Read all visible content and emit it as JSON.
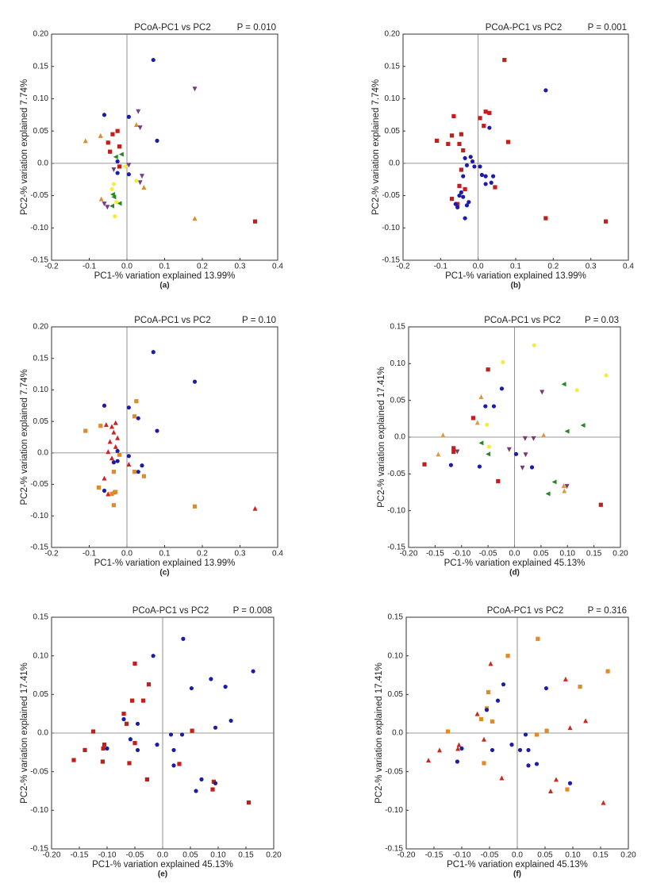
{
  "chart_data": [
    {
      "type": "scatter",
      "title": "PCoA-PC1 vs PC2",
      "annotation": "P = 0.010",
      "xlabel": "PC1-% variation explained 13.99%",
      "ylabel": "PC2-% variation explained 7.74%",
      "panel_label": "(a)",
      "xlim": [
        -0.2,
        0.4
      ],
      "ylim": [
        -0.15,
        0.2
      ],
      "zero_lines": true,
      "xticks": [
        -0.2,
        -0.1,
        {
          "value": 0,
          "label": "0.0"
        },
        0.1,
        0.2,
        0.3,
        0.4
      ],
      "yticks": [
        {
          "value": 0.2,
          "label": "0.20"
        },
        0.15,
        {
          "value": 0.1,
          "label": "0.10"
        },
        0.05,
        {
          "value": 0,
          "label": "0.0"
        },
        -0.05,
        {
          "value": -0.1,
          "label": "-0.10"
        },
        -0.15
      ],
      "series": [
        {
          "color": "#1c1ca8",
          "marker": "circle",
          "x": [
            0.07,
            -0.06,
            0.005,
            0.08,
            -0.025,
            -0.025,
            0.005
          ],
          "y": [
            0.16,
            0.075,
            0.072,
            0.035,
            0.003,
            -0.015,
            -0.017
          ]
        },
        {
          "color": "#c21f1a",
          "marker": "square",
          "x": [
            -0.025,
            -0.038,
            -0.05,
            -0.02,
            -0.045,
            -0.02,
            0.34
          ],
          "y": [
            0.05,
            0.045,
            0.032,
            0.026,
            0.018,
            -0.005,
            -0.09
          ]
        },
        {
          "color": "#e08a2a",
          "marker": "triangle-up",
          "x": [
            -0.11,
            -0.07,
            0.045,
            -0.068,
            0.18,
            0.025
          ],
          "y": [
            0.035,
            0.043,
            -0.037,
            -0.055,
            -0.085,
            0.06
          ]
        },
        {
          "color": "#238a23",
          "marker": "triangle-left",
          "x": [
            -0.015,
            -0.03,
            -0.038,
            -0.035,
            -0.02,
            -0.04
          ],
          "y": [
            0.014,
            0.01,
            -0.048,
            -0.052,
            -0.062,
            -0.066
          ]
        },
        {
          "color": "#7a3a8a",
          "marker": "triangle-down",
          "x": [
            0.18,
            0.03,
            0.035,
            -0.035,
            0.005,
            0.04,
            0.035,
            -0.06,
            -0.052
          ],
          "y": [
            0.115,
            0.08,
            0.055,
            -0.01,
            -0.003,
            -0.02,
            -0.03,
            -0.063,
            -0.068
          ]
        },
        {
          "color": "#f2ee3a",
          "marker": "circle",
          "x": [
            -0.005,
            0.025,
            -0.035,
            -0.04,
            -0.028,
            -0.032
          ],
          "y": [
            -0.005,
            -0.027,
            -0.032,
            -0.04,
            -0.06,
            -0.082
          ]
        }
      ]
    },
    {
      "type": "scatter",
      "title": "PCoA-PC1 vs PC2",
      "annotation": "P = 0.001",
      "xlabel": "PC1-% variation explained 13.99%",
      "ylabel": "PC2-% variation explained 7.74%",
      "panel_label": "(b)",
      "xlim": [
        -0.2,
        0.4
      ],
      "ylim": [
        -0.15,
        0.2
      ],
      "zero_lines": true,
      "xticks": [
        -0.2,
        -0.1,
        {
          "value": 0,
          "label": "0.0"
        },
        0.1,
        0.2,
        0.3,
        0.4
      ],
      "yticks": [
        {
          "value": 0.2,
          "label": "0.20"
        },
        0.15,
        {
          "value": 0.1,
          "label": "0.10"
        },
        0.05,
        {
          "value": 0,
          "label": "0.0"
        },
        -0.05,
        {
          "value": -0.1,
          "label": "-0.10"
        },
        -0.15
      ],
      "series": [
        {
          "color": "#c21f1a",
          "marker": "square",
          "x": [
            0.07,
            -0.11,
            -0.065,
            -0.07,
            -0.045,
            -0.08,
            0.005,
            0.02,
            0.03,
            0.015,
            -0.05,
            -0.04,
            -0.035,
            0.08,
            0.045,
            -0.05,
            -0.07,
            -0.055,
            -0.045,
            0.18,
            0.34
          ],
          "y": [
            0.16,
            0.035,
            0.073,
            0.043,
            0.045,
            0.03,
            0.07,
            0.08,
            0.078,
            0.058,
            0.03,
            0.02,
            -0.04,
            0.033,
            -0.037,
            -0.035,
            -0.055,
            -0.063,
            -0.01,
            -0.085,
            -0.09
          ]
        },
        {
          "color": "#1c1ca8",
          "marker": "circle",
          "x": [
            0.18,
            0.03,
            -0.02,
            -0.035,
            -0.015,
            -0.03,
            -0.01,
            0.005,
            0.01,
            -0.04,
            0.02,
            0.04,
            0.035,
            0.02,
            -0.045,
            -0.05,
            -0.04,
            -0.025,
            -0.03,
            -0.06,
            -0.055,
            -0.035
          ],
          "y": [
            0.113,
            0.055,
            0.01,
            0.008,
            0.003,
            -0.003,
            -0.005,
            -0.005,
            -0.018,
            -0.02,
            -0.02,
            -0.02,
            -0.03,
            -0.032,
            -0.045,
            -0.05,
            -0.052,
            -0.06,
            -0.065,
            -0.063,
            -0.068,
            -0.085
          ]
        }
      ]
    },
    {
      "type": "scatter",
      "title": "PCoA-PC1 vs PC2",
      "annotation": "P = 0.10",
      "xlabel": "PC1-% variation explained 13.99%",
      "ylabel": "PC2-% variation explained 7.74%",
      "panel_label": "(c)",
      "xlim": [
        -0.2,
        0.4
      ],
      "ylim": [
        -0.15,
        0.2
      ],
      "zero_lines": true,
      "xticks": [
        -0.2,
        -0.1,
        {
          "value": 0,
          "label": "0.0"
        },
        0.1,
        0.2,
        0.3,
        0.4
      ],
      "yticks": [
        {
          "value": 0.2,
          "label": "0.20"
        },
        0.15,
        {
          "value": 0.1,
          "label": "0.10"
        },
        0.05,
        {
          "value": 0,
          "label": "0.0"
        },
        -0.05,
        {
          "value": -0.1,
          "label": "-0.10"
        },
        -0.15
      ],
      "series": [
        {
          "color": "#1c1ca8",
          "marker": "circle",
          "x": [
            0.07,
            0.18,
            -0.06,
            0.005,
            0.03,
            0.08,
            -0.025,
            -0.035,
            0.04,
            0.005,
            0.03,
            -0.025,
            -0.06
          ],
          "y": [
            0.16,
            0.113,
            0.075,
            0.072,
            0.055,
            0.035,
            -0.013,
            -0.015,
            -0.02,
            -0.005,
            -0.03,
            0.003,
            -0.06
          ]
        },
        {
          "color": "#d42020",
          "marker": "triangle-up",
          "x": [
            -0.03,
            -0.04,
            -0.055,
            -0.035,
            -0.025,
            -0.045,
            -0.03,
            -0.05,
            -0.04,
            0.005,
            -0.06,
            -0.05,
            -0.035,
            0.34
          ],
          "y": [
            0.048,
            0.042,
            0.045,
            0.033,
            0.024,
            0.018,
            0.01,
            0.002,
            -0.008,
            -0.018,
            -0.04,
            -0.065,
            -0.062,
            -0.088
          ]
        },
        {
          "color": "#e08a2a",
          "marker": "square",
          "x": [
            -0.11,
            -0.07,
            0.025,
            0.02,
            -0.02,
            0.045,
            -0.035,
            0.02,
            -0.075,
            -0.04,
            -0.03,
            -0.035,
            0.18
          ],
          "y": [
            0.035,
            0.043,
            0.082,
            0.058,
            -0.003,
            -0.037,
            -0.03,
            -0.03,
            -0.055,
            -0.065,
            -0.062,
            -0.083,
            -0.085
          ]
        }
      ]
    },
    {
      "type": "scatter",
      "title": "PCoA-PC1 vs PC2",
      "annotation": "P = 0.03",
      "xlabel": "PC1-% variation explained 45.13%",
      "ylabel": "PC2-% variation explained 17.41%",
      "panel_label": "(d)",
      "xlim": [
        -0.2,
        0.2
      ],
      "ylim": [
        -0.15,
        0.15
      ],
      "zero_lines": true,
      "xticks": [
        {
          "value": -0.2,
          "label": "-0.20"
        },
        -0.15,
        {
          "value": -0.1,
          "label": "-0.10"
        },
        -0.05,
        {
          "value": 0,
          "label": "0.0"
        },
        0.05,
        {
          "value": 0.1,
          "label": "0.10"
        },
        0.15,
        {
          "value": 0.2,
          "label": "0.20"
        }
      ],
      "yticks": [
        0.15,
        {
          "value": 0.1,
          "label": "0.10"
        },
        0.05,
        {
          "value": 0,
          "label": "0.0"
        },
        -0.05,
        {
          "value": -0.1,
          "label": "-0.10"
        },
        -0.15
      ],
      "series": [
        {
          "color": "#f2ee3a",
          "marker": "circle",
          "x": [
            0.037,
            -0.022,
            0.173,
            0.118,
            -0.052,
            -0.048
          ],
          "y": [
            0.125,
            0.102,
            0.084,
            0.064,
            0.017,
            -0.013
          ]
        },
        {
          "color": "#c21f1a",
          "marker": "square",
          "x": [
            -0.05,
            -0.078,
            -0.115,
            -0.115,
            -0.17,
            -0.031,
            0.163
          ],
          "y": [
            0.092,
            0.026,
            -0.015,
            -0.02,
            -0.037,
            -0.06,
            -0.092
          ]
        },
        {
          "color": "#238a23",
          "marker": "triangle-left",
          "x": [
            0.093,
            0.129,
            0.099,
            -0.063,
            -0.05,
            0.075,
            0.063
          ],
          "y": [
            0.072,
            0.016,
            0.008,
            -0.008,
            -0.023,
            -0.061,
            -0.077
          ]
        },
        {
          "color": "#7a3a6a",
          "marker": "triangle-down",
          "x": [
            0.052,
            0.02,
            -0.108,
            -0.01,
            0.021,
            0.015,
            0.099,
            0.036
          ],
          "y": [
            0.061,
            -0.002,
            -0.02,
            -0.017,
            -0.024,
            -0.042,
            -0.067,
            -0.002
          ]
        },
        {
          "color": "#1c1ca8",
          "marker": "circle",
          "x": [
            -0.024,
            -0.055,
            -0.039,
            0.003,
            -0.12,
            -0.066,
            0.033
          ],
          "y": [
            0.066,
            0.042,
            0.042,
            -0.023,
            -0.038,
            -0.04,
            -0.041
          ]
        },
        {
          "color": "#d99a4a",
          "marker": "triangle-up",
          "x": [
            -0.063,
            -0.07,
            -0.135,
            0.055,
            -0.144,
            0.093,
            0.094
          ],
          "y": [
            0.055,
            0.02,
            0.003,
            0.003,
            -0.023,
            -0.066,
            -0.073
          ]
        }
      ]
    },
    {
      "type": "scatter",
      "title": "PCoA-PC1 vs PC2",
      "annotation": "P = 0.008",
      "xlabel": "PC1-% variation explained 45.13%",
      "ylabel": "PC2-% variation explained 17.41%",
      "panel_label": "(e)",
      "xlim": [
        -0.2,
        0.2
      ],
      "ylim": [
        -0.15,
        0.15
      ],
      "zero_lines": true,
      "xticks": [
        {
          "value": -0.2,
          "label": "-0.20"
        },
        -0.15,
        {
          "value": -0.1,
          "label": "-0.10"
        },
        -0.05,
        {
          "value": 0,
          "label": "0.0"
        },
        0.05,
        {
          "value": 0.1,
          "label": "0.10"
        },
        0.15,
        {
          "value": 0.2,
          "label": "0.20"
        }
      ],
      "yticks": [
        0.15,
        {
          "value": 0.1,
          "label": "0.10"
        },
        0.05,
        {
          "value": 0,
          "label": "0.0"
        },
        -0.05,
        {
          "value": -0.1,
          "label": "-0.10"
        },
        -0.15
      ],
      "series": [
        {
          "color": "#c21f1a",
          "marker": "square",
          "x": [
            -0.05,
            -0.025,
            -0.07,
            -0.055,
            -0.035,
            -0.125,
            -0.105,
            -0.107,
            -0.05,
            -0.108,
            -0.06,
            -0.14,
            -0.16,
            -0.028,
            0.053,
            0.03,
            0.09,
            0.092,
            0.155,
            -0.065
          ],
          "y": [
            0.09,
            0.063,
            0.025,
            0.042,
            0.042,
            0.002,
            -0.015,
            -0.02,
            -0.013,
            -0.037,
            -0.039,
            -0.022,
            -0.035,
            -0.06,
            0.003,
            -0.04,
            -0.073,
            -0.063,
            -0.09,
            0.012
          ]
        },
        {
          "color": "#1c1ca8",
          "marker": "circle",
          "x": [
            0.037,
            -0.017,
            0.052,
            0.087,
            0.113,
            0.163,
            0.123,
            0.095,
            -0.07,
            -0.045,
            -0.058,
            -0.1,
            -0.045,
            0.015,
            0.035,
            -0.01,
            0.02,
            0.02,
            0.06,
            0.07,
            0.095
          ],
          "y": [
            0.122,
            0.1,
            0.058,
            0.07,
            0.06,
            0.08,
            0.016,
            0.007,
            0.018,
            0.012,
            -0.008,
            -0.02,
            -0.022,
            -0.002,
            -0.002,
            -0.015,
            -0.022,
            -0.042,
            -0.075,
            -0.06,
            -0.065
          ]
        }
      ]
    },
    {
      "type": "scatter",
      "title": "PCoA-PC1 vs PC2",
      "annotation": "P = 0.316",
      "xlabel": "PC1-% variation explained 45.13%",
      "ylabel": "PC2-% variation explained 17.41%",
      "panel_label": "(f)",
      "xlim": [
        -0.2,
        0.2
      ],
      "ylim": [
        -0.15,
        0.15
      ],
      "zero_lines": true,
      "xticks": [
        {
          "value": -0.2,
          "label": "-0.20"
        },
        -0.15,
        {
          "value": -0.1,
          "label": "-0.10"
        },
        -0.05,
        {
          "value": 0,
          "label": "0.0"
        },
        0.05,
        {
          "value": 0.1,
          "label": "0.10"
        },
        0.15,
        {
          "value": 0.2,
          "label": "0.20"
        }
      ],
      "yticks": [
        0.15,
        {
          "value": 0.1,
          "label": "0.10"
        },
        0.05,
        {
          "value": 0,
          "label": "0.0"
        },
        -0.05,
        {
          "value": -0.1,
          "label": "-0.10"
        },
        -0.15
      ],
      "series": [
        {
          "color": "#e08a2a",
          "marker": "square",
          "x": [
            0.037,
            -0.017,
            -0.052,
            0.113,
            0.163,
            -0.055,
            -0.065,
            -0.045,
            -0.125,
            0.053,
            0.035,
            -0.06,
            0.09
          ],
          "y": [
            0.122,
            0.1,
            0.053,
            0.06,
            0.08,
            0.032,
            0.018,
            0.015,
            0.002,
            0.003,
            -0.002,
            -0.039,
            -0.073
          ]
        },
        {
          "color": "#c82a1e",
          "marker": "triangle-up",
          "x": [
            -0.048,
            0.087,
            -0.072,
            0.095,
            0.123,
            -0.107,
            -0.105,
            -0.14,
            -0.16,
            -0.06,
            -0.028,
            0.07,
            0.06,
            0.155
          ],
          "y": [
            0.09,
            0.07,
            0.025,
            0.007,
            0.016,
            -0.02,
            -0.015,
            -0.022,
            -0.035,
            -0.008,
            -0.058,
            -0.06,
            -0.075,
            -0.09
          ]
        },
        {
          "color": "#1c1ca8",
          "marker": "circle",
          "x": [
            -0.025,
            -0.035,
            -0.055,
            0.052,
            -0.1,
            -0.045,
            -0.01,
            0.015,
            0.005,
            0.02,
            0.02,
            0.035,
            -0.108,
            0.095
          ],
          "y": [
            0.063,
            0.042,
            0.03,
            0.058,
            -0.02,
            -0.022,
            -0.015,
            -0.002,
            -0.022,
            -0.022,
            -0.042,
            -0.04,
            -0.037,
            -0.065
          ]
        }
      ]
    }
  ]
}
